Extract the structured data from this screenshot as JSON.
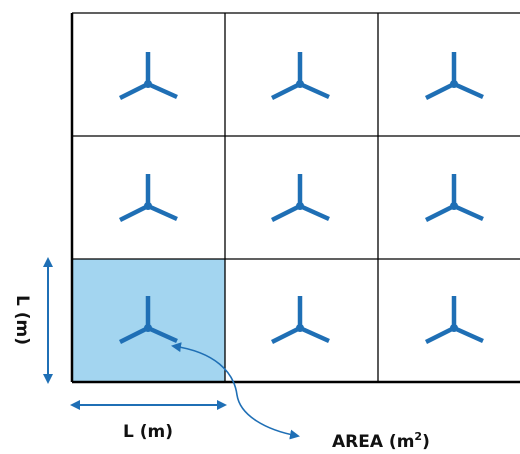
{
  "colors": {
    "turbine": "#1f6fb5",
    "highlight_cell": "#a3d5f0",
    "grid_line": "#000000",
    "arrow": "#1f6fb5",
    "text": "#111111"
  },
  "grid": {
    "rows": 3,
    "cols": 3,
    "highlighted_cell": {
      "row": 3,
      "col": 1
    },
    "cell_icon": "wind-turbine-icon"
  },
  "labels": {
    "horizontal_dimension": "L (m)",
    "vertical_dimension": "L (m)",
    "area_prefix": "AREA (m",
    "area_superscript": "2",
    "area_suffix": ")"
  }
}
